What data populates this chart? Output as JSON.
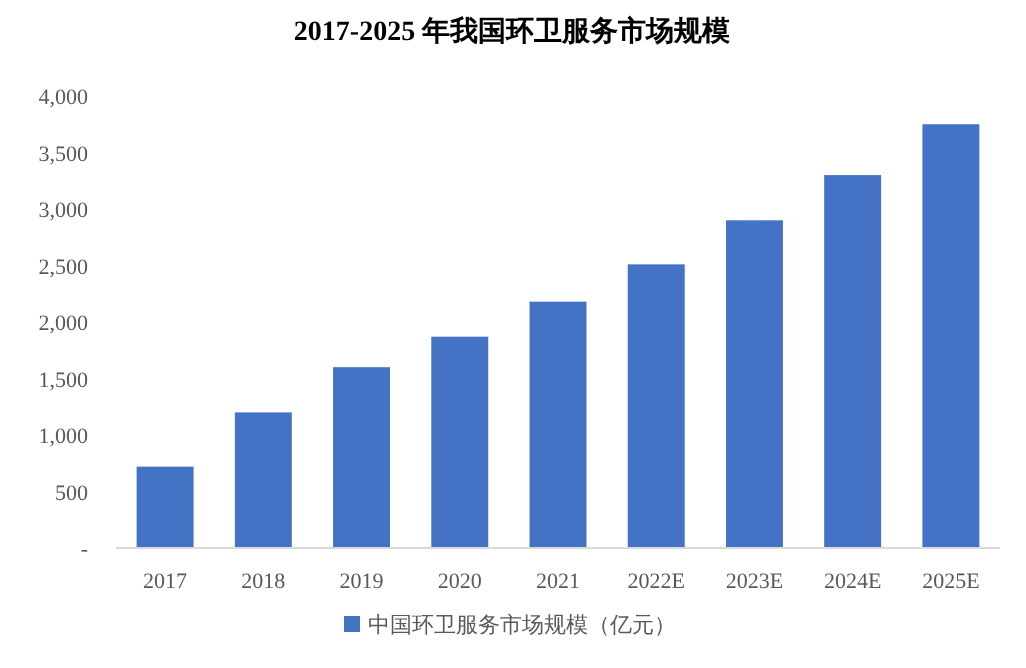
{
  "chart_data": {
    "type": "bar",
    "title": "2017-2025 年我国环卫服务市场规模",
    "categories": [
      "2017",
      "2018",
      "2019",
      "2020",
      "2021",
      "2022E",
      "2023E",
      "2024E",
      "2025E"
    ],
    "series": [
      {
        "name": "中国环卫服务市场规模（亿元）",
        "color": "#4472c4",
        "values": [
          720,
          1200,
          1600,
          1870,
          2180,
          2510,
          2900,
          3300,
          3750
        ]
      }
    ],
    "ylim": [
      0,
      4000
    ],
    "yticks": [
      {
        "value": 0,
        "label": "-"
      },
      500,
      {
        "value": 1000,
        "label": "1,000"
      },
      {
        "value": 1500,
        "label": "1,500"
      },
      {
        "value": 2000,
        "label": "2,000"
      },
      {
        "value": 2500,
        "label": "2,500"
      },
      {
        "value": 3000,
        "label": "3,000"
      },
      {
        "value": 3500,
        "label": "3,500"
      },
      {
        "value": 4000,
        "label": "4,000"
      }
    ],
    "grid": false,
    "legend": "bottom"
  }
}
